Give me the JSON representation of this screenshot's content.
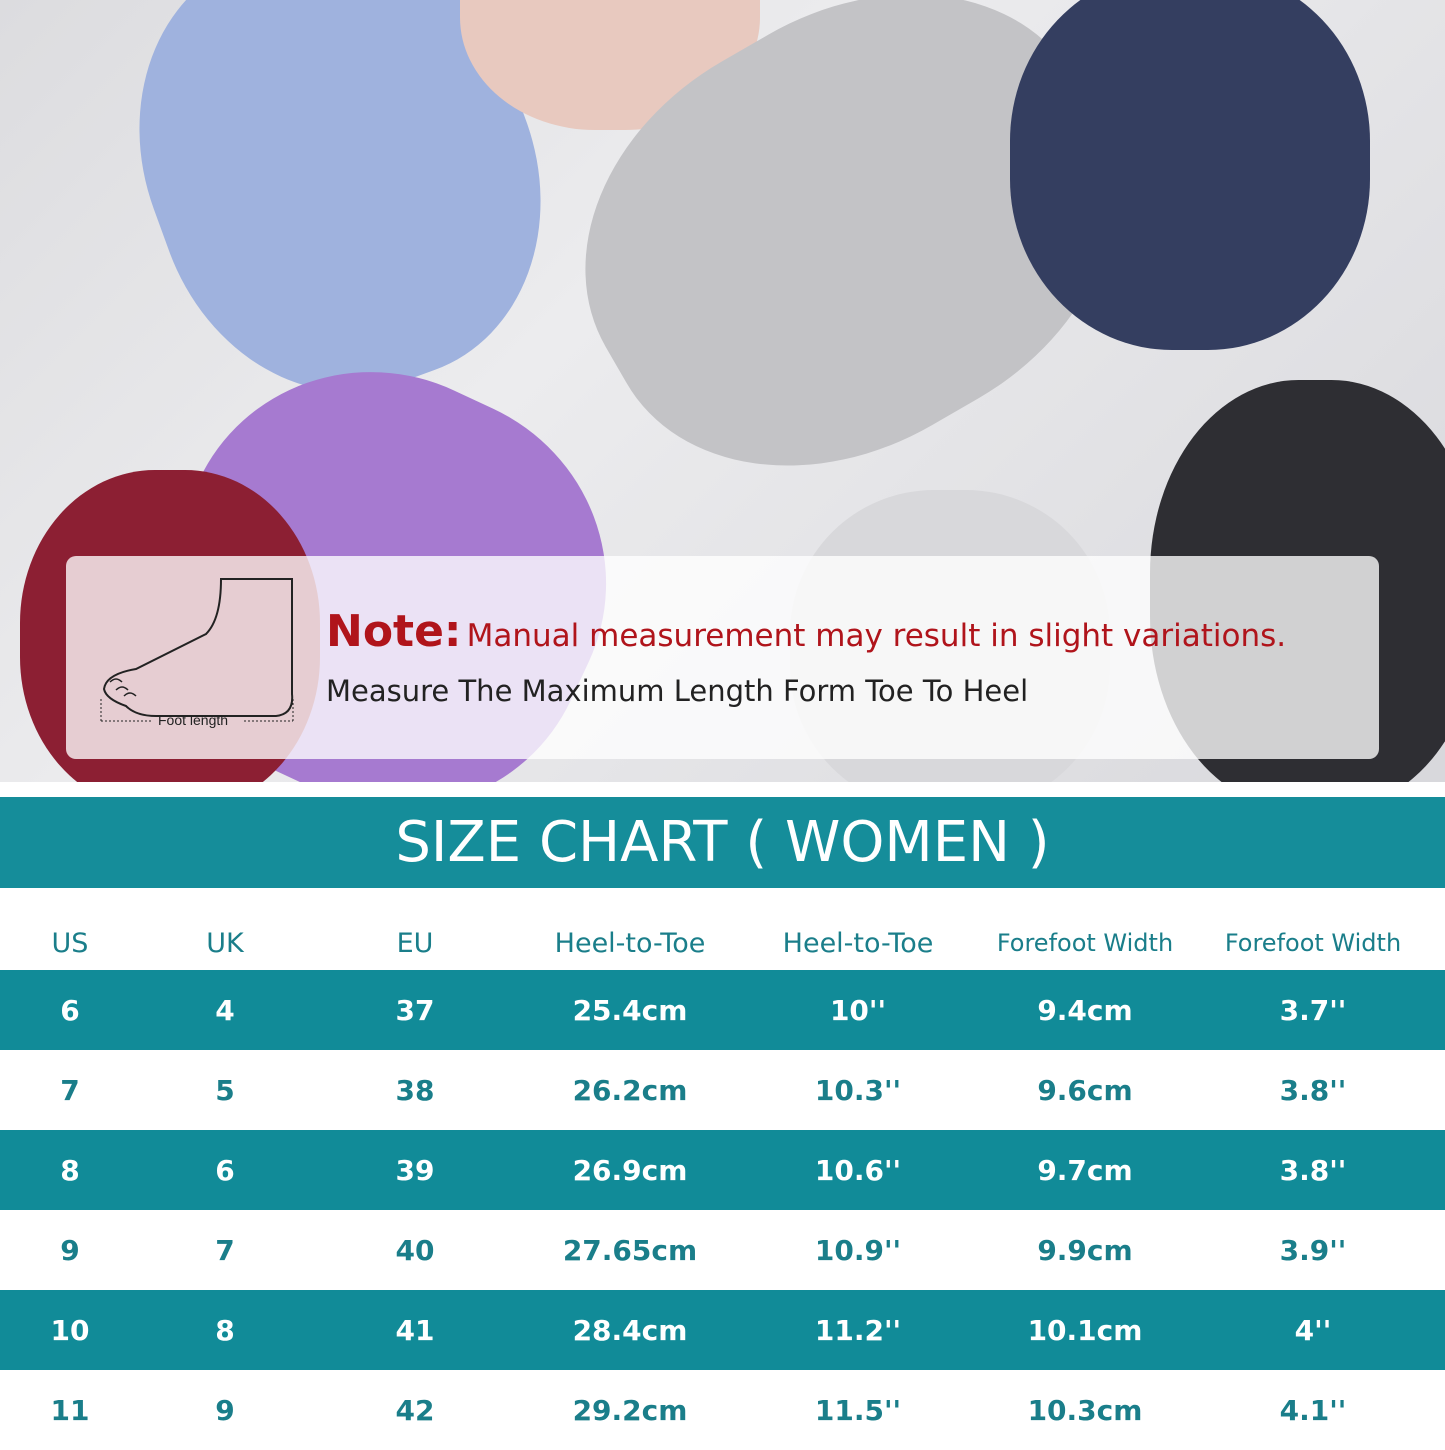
{
  "note": {
    "label": "Note:",
    "text": "Manual measurement may result in slight variations.",
    "measure": "Measure The Maximum Length Form Toe To Heel",
    "diagram_label": "Foot length"
  },
  "title": "SIZE CHART ( WOMEN )",
  "colors": {
    "teal": "#118b98",
    "note_red": "#b0141b"
  },
  "table": {
    "headers": [
      "US",
      "UK",
      "EU",
      "Heel-to-Toe",
      "Heel-to-Toe",
      "Forefoot Width",
      "Forefoot Width"
    ],
    "rows": [
      [
        "6",
        "4",
        "37",
        "25.4cm",
        "10''",
        "9.4cm",
        "3.7''"
      ],
      [
        "7",
        "5",
        "38",
        "26.2cm",
        "10.3''",
        "9.6cm",
        "3.8''"
      ],
      [
        "8",
        "6",
        "39",
        "26.9cm",
        "10.6''",
        "9.7cm",
        "3.8''"
      ],
      [
        "9",
        "7",
        "40",
        "27.65cm",
        "10.9''",
        "9.9cm",
        "3.9''"
      ],
      [
        "10",
        "8",
        "41",
        "28.4cm",
        "11.2''",
        "10.1cm",
        "4''"
      ],
      [
        "11",
        "9",
        "42",
        "29.2cm",
        "11.5''",
        "10.3cm",
        "4.1''"
      ]
    ]
  }
}
